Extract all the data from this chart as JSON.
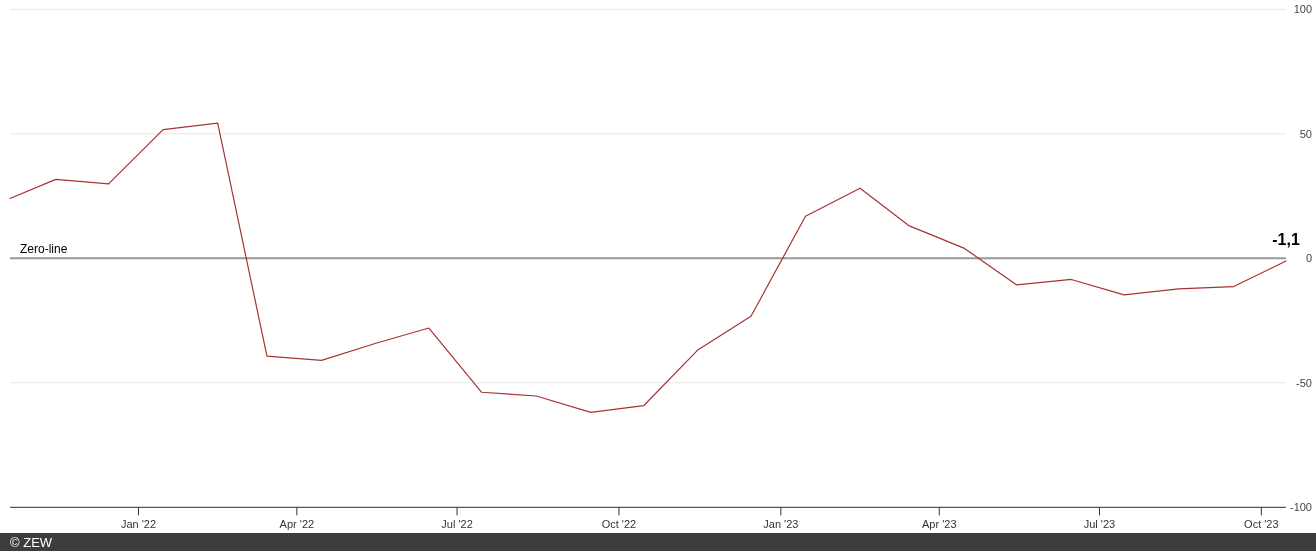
{
  "chart_data": {
    "type": "line",
    "x": [
      "2021-10-20",
      "2021-11-15",
      "2021-12-15",
      "2022-01-15",
      "2022-02-15",
      "2022-03-15",
      "2022-04-15",
      "2022-05-15",
      "2022-06-15",
      "2022-07-15",
      "2022-08-15",
      "2022-09-15",
      "2022-10-15",
      "2022-11-15",
      "2022-12-15",
      "2023-01-15",
      "2023-02-15",
      "2023-03-15",
      "2023-04-15",
      "2023-05-15",
      "2023-06-15",
      "2023-07-15",
      "2023-08-15",
      "2023-09-15",
      "2023-10-15"
    ],
    "series": [
      {
        "color": "#a83232",
        "values": [
          24,
          31.7,
          29.9,
          51.7,
          54.3,
          -39.3,
          -41,
          -34.3,
          -28,
          -53.8,
          -55.3,
          -61.9,
          -59.2,
          -36.7,
          -23.3,
          16.9,
          28.1,
          13,
          4.1,
          -10.7,
          -8.5,
          -14.7,
          -12.3,
          -11.4,
          -1.1
        ],
        "value_labels": [
          null,
          null,
          null,
          null,
          null,
          null,
          null,
          null,
          null,
          null,
          null,
          null,
          null,
          null,
          null,
          null,
          null,
          null,
          null,
          null,
          null,
          null,
          null,
          null,
          "-1,1"
        ]
      }
    ],
    "xlim": [
      "2021-10-20",
      "2023-10-15"
    ],
    "xticks": [
      {
        "value": "2022-01-01",
        "label": "Jan '22"
      },
      {
        "value": "2022-04-01",
        "label": "Apr '22"
      },
      {
        "value": "2022-07-01",
        "label": "Jul '22"
      },
      {
        "value": "2022-10-01",
        "label": "Oct '22"
      },
      {
        "value": "2023-01-01",
        "label": "Jan '23"
      },
      {
        "value": "2023-04-01",
        "label": "Apr '23"
      },
      {
        "value": "2023-07-01",
        "label": "Jul '23"
      },
      {
        "value": "2023-10-01",
        "label": "Oct '23"
      }
    ],
    "ylim": [
      -100,
      100
    ],
    "yticks": [
      -100,
      -50,
      0,
      50,
      100
    ],
    "grid": "y",
    "ref_lines": [
      {
        "axis": "y",
        "value": 0,
        "label": "Zero-line",
        "color": "#999999"
      }
    ],
    "annotations": [
      "© ZEW"
    ]
  }
}
